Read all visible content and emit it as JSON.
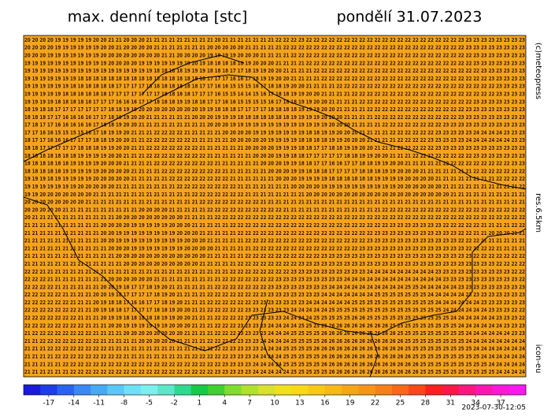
{
  "header": {
    "title": "max. denní teplota [stc]",
    "date": "pondělí 31.07.2023"
  },
  "side": {
    "copyright": "(c)meteopress",
    "resolution": "res.6.5km",
    "model": "icon-eu"
  },
  "footer": {
    "timestamp": "2023-07-30-12:05"
  },
  "grid": {
    "rows": [
      "20 20 20 20 19 19 19 19 19 20 20 21 21 20 20 20 21 21 21 21 21 21 21 21 21 20 21 21 21 21 21 21 21 22 22 22 23 22 22 22 22 22 22 22 22 22 22 22 22 22 22 22 22 22 22 22 22 23 23 23 23 23 23 23 23 23",
      "20 20 20 20 19 19 19 19 19 19 20 20 21 20 20 20 20 21 21 21 21 21 21 21 20 20 20 20 20 21 21 21 21 21 22 22 22 22 22 22 22 22 22 22 22 22 22 22 22 22 22 22 22 22 22 22 22 22 23 23 23 23 23 23 23 23",
      "20 20 20 19 19 19 19 19 19 19 20 20 20 20 20 20 20 20 21 21 20 20 20 20 19 19 19 19 20 20 20 21 21 21 21 22 22 22 22 22 22 22 22 22 22 22 22 22 22 22 22 22 22 22 22 22 22 22 22 23 23 23 23 23 23 23",
      "19 19 19 19 19 19 19 19 19 19 19 20 20 20 20 19 19 19 19 19 19 19 20 19 18 18 18 18 18 19 20 20 20 21 21 21 21 22 22 22 22 22 22 22 22 22 22 22 22 22 22 22 22 22 22 22 22 22 22 23 23 23 23 23 23 23",
      "19 19 19 19 19 19 19 19 19 19 19 19 19 19 19 19 19 18 18 18 18 19 19 19 18 18 18 17 17 18 19 19 20 20 21 21 21 21 22 22 22 22 22 22 22 22 22 22 22 22 22 22 22 22 22 22 22 22 22 22 23 23 23 23 23 23",
      "19 19 19 19 19 19 19 18 18 18 18 18 18 18 18 18 18 18 18 18 18 18 18 18 17 17 17 16 16 17 18 19 19 20 20 21 21 21 21 22 22 22 22 22 22 22 22 22 22 22 22 22 22 22 22 22 22 22 22 22 22 23 23 23 23 23",
      "19 19 19 19 19 19 18 18 18 18 18 18 17 17 17 17 18 18 18 18 18 18 18 17 17 16 16 15 15 15 16 17 18 18 19 20 20 21 21 21 21 22 22 22 22 22 22 22 22 22 22 22 22 22 22 22 22 22 22 22 22 22 23 23 23 23",
      "19 19 19 19 19 18 18 18 18 18 18 17 17 17 17 17 17 17 18 18 18 18 17 17 17 16 15 15 14 14 15 16 17 18 18 19 19 20 20 21 21 21 21 22 22 22 22 22 22 22 22 22 22 22 22 22 22 22 22 22 22 22 23 23 23 23",
      "19 19 19 19 18 18 18 18 18 17 17 17 16 16 16 17 17 18 18 18 19 19 18 18 17 17 16 16 15 15 15 15 16 17 18 18 19 19 20 20 21 21 21 21 22 22 22 22 22 22 22 22 22 22 22 22 22 22 22 23 23 23 23 23 23 23",
      "18 19 18 18 17 17 17 17 17 17 17 18 18 19 19 20 20 20 20 20 20 20 20 19 19 18 18 18 17 17 17 17 18 18 18 18 19 19 19 20 20 21 21 21 21 22 22 22 22 22 22 22 22 22 22 22 22 22 23 23 23 23 23 23 23 23",
      "18 18 18 17 17 16 16 16 16 17 17 18 19 19 20 20 21 21 21 21 21 21 20 20 20 19 19 19 18 18 18 18 18 18 18 19 19 19 19 20 20 20 21 21 21 21 22 22 22 22 22 22 22 22 22 22 22 23 23 23 23 23 23 23 23 23",
      "17 18 17 17 16 16 16 16 16 17 18 18 19 20 20 21 21 21 21 21 21 21 21 21 20 20 20 19 19 19 19 19 19 19 19 19 19 19 19 19 20 20 20 21 21 21 21 22 22 22 22 22 22 22 22 23 23 23 23 23 23 23 23 23 23 23",
      "17 17 16 16 15 15 15 15 16 17 18 19 19 20 21 21 21 22 22 22 22 21 21 21 21 21 20 20 20 20 19 19 19 19 19 19 19 18 18 19 19 20 20 20 21 21 21 21 22 22 22 22 22 22 23 23 23 23 23 24 24 24 24 23 23 23",
      "18 17 17 16 16 16 17 17 17 18 18 19 20 20 21 21 22 22 22 22 22 22 21 21 21 21 21 20 20 20 20 20 19 19 19 19 18 18 18 18 19 19 20 20 20 21 21 21 21 22 22 22 22 23 23 23 23 23 24 24 24 24 24 24 23 23",
      "18 18 17 17 17 17 17 18 18 18 19 19 20 20 21 21 22 22 22 22 22 22 22 21 21 21 21 21 21 20 20 20 20 19 19 19 18 18 17 17 18 18 19 19 20 20 21 21 21 22 22 22 22 22 23 23 23 23 23 23 23 23 23 23 23 23",
      "18 18 18 18 18 18 18 19 19 19 19 20 20 21 21 21 22 22 22 22 22 22 22 22 21 21 21 21 21 21 20 20 20 19 19 18 18 17 17 17 17 17 18 18 19 19 20 20 21 21 21 22 22 22 22 22 22 22 22 23 23 23 23 23 23 23",
      "18 18 18 18 18 18 19 19 19 19 20 20 20 21 21 21 21 22 22 22 22 22 22 22 22 21 21 21 21 21 21 20 20 20 19 19 18 18 17 17 16 16 17 17 18 18 19 19 20 20 21 21 21 21 21 22 22 22 22 22 22 22 22 22 23 23",
      "18 18 18 18 18 19 19 19 19 19 20 20 20 20 21 21 21 21 22 22 22 22 22 22 22 22 21 21 21 21 21 21 20 20 20 19 19 18 18 18 17 17 17 17 18 18 18 19 19 20 20 20 21 21 21 21 21 21 21 22 22 22 22 22 22 22",
      "19 19 19 18 19 19 19 19 19 20 20 20 20 20 21 21 21 21 21 22 22 22 22 22 22 22 22 21 21 21 21 21 21 20 20 20 19 19 19 19 18 18 18 18 18 18 19 19 19 19 20 20 20 20 21 21 21 21 21 21 21 21 22 22 22 22",
      "19 19 19 19 19 19 19 20 20 20 20 20 21 21 21 21 21 21 21 21 22 22 22 22 22 22 22 22 21 21 21 21 21 21 21 20 20 20 20 19 19 19 19 19 19 19 19 19 19 20 20 20 20 20 20 21 21 21 21 21 21 21 21 21 21 22",
      "19 19 20 20 20 20 20 20 20 21 21 21 21 21 21 21 21 21 21 21 21 21 22 22 22 22 22 22 22 21 21 21 21 21 21 21 21 20 20 20 20 20 20 20 20 20 20 20 20 20 20 20 20 20 20 20 21 21 21 21 21 21 21 21 21 21",
      "20 20 20 20 20 20 20 20 21 21 21 21 21 21 21 21 21 21 21 21 21 21 21 22 22 22 22 22 22 22 22 21 21 21 21 21 21 21 21 21 21 21 21 21 21 21 21 21 21 21 21 21 21 21 21 21 21 21 21 21 21 21 21 21 21 21",
      "20 20 20 20 20 21 21 21 21 21 21 21 21 21 21 20 20 20 20 21 21 21 21 21 22 22 22 22 22 22 22 22 22 22 21 21 21 21 21 21 21 21 21 21 21 21 21 22 22 22 22 22 22 22 22 22 22 22 22 22 22 22 22 22 22 22",
      "20 21 21 21 21 21 21 21 21 21 21 21 20 20 20 20 20 20 20 20 20 21 21 21 21 22 22 22 22 22 22 22 22 22 22 22 22 22 22 22 22 22 22 22 22 22 22 22 22 22 22 22 22 22 22 22 22 22 22 22 22 22 22 22 22 22",
      "21 21 21 21 21 21 21 21 21 21 20 20 20 20 19 19 19 19 19 20 20 20 21 21 21 21 21 22 22 22 22 22 22 22 22 22 22 22 22 22 22 22 22 22 22 22 22 22 23 23 23 23 23 23 23 22 22 22 22 22 21 21 21 21 22 22",
      "21 21 21 21 21 21 21 21 21 21 20 20 19 19 19 19 19 19 19 19 20 20 20 21 21 21 21 21 22 22 22 22 22 22 22 22 22 22 22 22 22 22 22 22 22 22 23 23 23 23 23 23 23 23 23 23 23 22 22 21 21 20 20 20 21 21",
      "21 21 21 21 21 21 21 21 21 21 20 20 19 19 19 19 19 19 19 19 19 20 20 20 21 21 21 21 21 22 22 22 22 22 22 22 22 22 22 22 22 22 22 22 22 23 23 23 23 23 23 23 23 23 23 23 23 22 22 22 21 21 21 21 21 21",
      "21 21 21 21 21 21 21 21 21 21 21 20 20 20 19 19 19 19 19 19 19 20 20 20 20 21 21 21 21 21 22 22 22 22 22 22 22 22 22 22 22 22 22 22 23 23 23 23 23 23 23 23 23 23 23 23 23 23 22 22 22 22 21 21 21 21",
      "21 21 21 21 21 21 21 21 21 21 21 21 20 20 20 20 20 20 20 20 20 20 20 20 21 21 21 21 21 22 22 22 22 22 22 22 22 22 22 23 23 23 23 23 23 23 23 23 23 23 23 23 23 23 23 23 23 23 23 22 22 22 22 22 22 22",
      "21 21 21 21 21 21 21 21 21 21 21 21 21 20 20 20 20 20 20 20 20 20 20 21 21 21 21 21 22 22 22 22 22 22 22 22 23 23 23 23 23 23 23 23 23 23 23 23 23 23 23 23 23 23 23 23 23 23 23 23 23 23 22 22 22 22",
      "22 22 21 21 21 21 21 21 21 21 21 21 21 21 21 21 21 21 21 21 21 21 21 21 21 21 21 22 22 22 22 22 22 22 22 23 23 23 23 23 23 23 23 23 23 24 24 24 24 24 24 24 24 24 23 23 23 23 23 23 23 23 23 23 22 22",
      "22 22 22 21 21 21 21 21 21 21 21 20 20 20 20 20 20 21 21 21 21 21 21 21 21 21 22 22 22 22 22 22 22 23 23 23 23 23 23 23 23 23 24 24 24 24 24 24 24 24 24 24 24 24 24 23 23 23 23 23 23 23 23 23 23 22",
      "22 22 22 22 21 21 21 21 21 21 20 20 19 18 17 17 18 19 20 21 21 21 21 21 21 22 22 22 22 22 22 22 23 23 23 23 23 23 23 23 24 24 24 24 24 24 24 24 24 24 25 25 24 24 24 24 24 23 23 23 23 23 23 23 23 23",
      "22 22 22 22 22 21 21 21 21 20 20 19 18 17 17 17 17 18 19 20 21 21 21 21 22 22 22 22 22 22 22 23 23 23 23 23 23 23 23 24 24 24 24 24 24 24 25 25 25 25 25 25 25 24 24 24 24 24 23 23 23 23 23 23 23 23",
      "22 22 22 22 22 22 21 21 21 20 19 18 18 17 16 16 17 17 18 19 20 21 21 21 22 22 22 22 22 22 23 23 23 23 23 23 23 24 24 24 24 24 24 25 25 25 25 25 25 25 25 25 25 25 24 24 24 24 24 24 23 23 23 23 23 23",
      "22 22 22 22 22 22 22 21 21 20 19 18 18 17 17 17 17 18 18 19 20 20 21 21 22 22 22 22 22 23 23 23 23 23 23 24 24 24 24 24 25 25 25 25 25 25 25 25 25 25 25 25 25 25 25 24 24 24 24 24 24 23 23 23 22 22",
      "22 22 22 22 22 22 22 21 21 21 20 19 19 18 18 18 18 18 19 19 20 20 21 21 21 22 22 22 22 23 23 23 23 23 24 24 24 24 25 25 25 25 25 26 26 25 25 25 25 25 25 25 25 25 25 25 24 24 24 24 24 24 23 23 23 22",
      "22 22 22 22 22 22 22 22 21 21 21 20 20 19 19 19 19 19 19 20 20 20 21 21 21 22 22 22 23 23 23 23 24 24 24 24 25 25 25 25 26 26 26 26 26 26 26 26 25 25 25 25 25 25 25 25 25 24 24 24 24 24 24 23 23 23",
      "21 22 22 22 22 22 22 22 22 21 21 21 21 20 20 20 20 20 20 20 20 21 21 21 21 22 22 22 23 23 23 23 24 24 24 25 25 25 25 26 26 26 26 26 26 26 26 26 26 25 25 25 25 25 25 25 25 25 24 24 24 24 24 24 23 23",
      "21 21 22 22 22 22 22 22 22 22 21 21 21 21 21 20 20 20 20 20 21 21 21 21 22 22 22 22 23 23 23 24 24 24 24 25 25 25 25 26 26 26 26 26 26 26 26 26 26 26 25 25 25 25 25 25 25 25 24 24 24 24 24 24 24 24",
      "21 21 21 22 22 22 22 22 22 22 22 21 21 21 21 21 21 21 21 21 21 21 21 22 22 22 22 23 23 23 23 24 24 24 25 25 25 25 26 26 26 26 26 26 26 26 26 26 26 26 25 25 25 25 25 25 25 25 25 24 24 24 24 24 24 24",
      "21 21 21 21 22 22 22 22 22 22 22 22 22 21 21 21 21 21 21 21 21 21 22 22 22 22 22 23 23 23 24 24 24 24 25 25 25 25 25 26 26 26 26 26 26 26 26 26 26 26 26 25 25 25 25 25 25 25 25 25 24 24 24 24 24 24",
      "21 21 21 21 21 22 22 22 22 22 22 22 22 22 22 22 22 22 22 22 22 22 22 22 22 22 23 23 23 23 24 24 24 24 25 25 25 25 25 26 26 26 26 26 26 26 26 26 26 26 26 26 25 25 25 25 25 25 25 25 25 24 24 24 24 24",
      "21 21 21 21 21 21 22 22 22 22 22 22 22 22 22 22 22 22 22 22 22 22 22 22 22 23 23 23 23 23 24 24 24 24 24 25 25 25 25 25 26 26 26 26 26 26 26 26 26 26 26 26 25 25 25 25 25 25 25 25 25 25 24 24 24 24"
    ]
  },
  "colorbar": {
    "range": [
      -20,
      40
    ],
    "ticks": [
      -17,
      -14,
      -11,
      -8,
      -5,
      -2,
      1,
      4,
      7,
      10,
      13,
      16,
      19,
      22,
      25,
      28,
      31,
      34,
      37
    ],
    "colors": [
      "#1a1ad8",
      "#1f3ce8",
      "#2a62f0",
      "#3a88f4",
      "#46aaf6",
      "#5ac8f8",
      "#6ee0f8",
      "#7cf0ee",
      "#5ce8c8",
      "#30d890",
      "#18c848",
      "#40d030",
      "#80dc30",
      "#b0e030",
      "#d8e030",
      "#f0e020",
      "#f8d818",
      "#f8c818",
      "#f8b818",
      "#f8a418",
      "#f89418",
      "#f88018",
      "#f86818",
      "#f84818",
      "#f82020",
      "#f81848",
      "#f81880",
      "#f818b0",
      "#f818d8",
      "#f818f0"
    ]
  }
}
